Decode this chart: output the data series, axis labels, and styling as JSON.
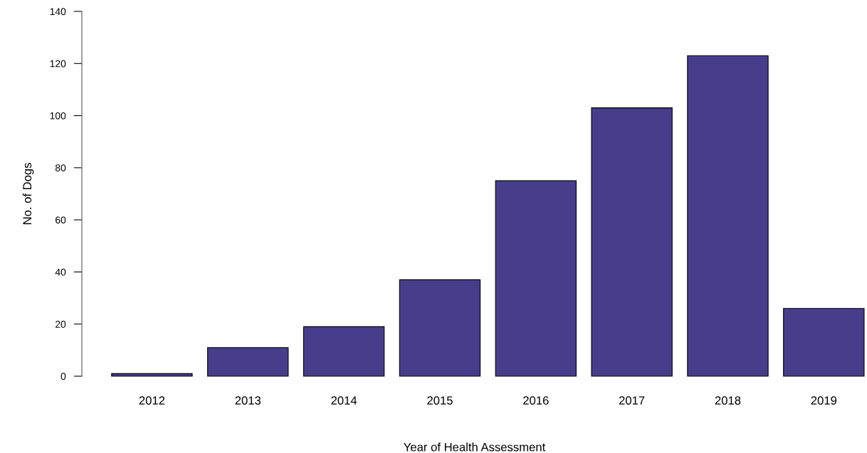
{
  "chart_data": {
    "type": "bar",
    "xlabel": "Year of Health Assessment",
    "ylabel": "No. of Dogs",
    "categories": [
      "2012",
      "2013",
      "2014",
      "2015",
      "2016",
      "2017",
      "2018",
      "2019"
    ],
    "values": [
      1,
      11,
      19,
      37,
      75,
      103,
      123,
      26
    ],
    "color": "#483d8b",
    "ylim": [
      0,
      140
    ],
    "yticks": [
      0,
      20,
      40,
      60,
      80,
      100,
      120,
      140
    ],
    "grid": false,
    "legend": false
  }
}
